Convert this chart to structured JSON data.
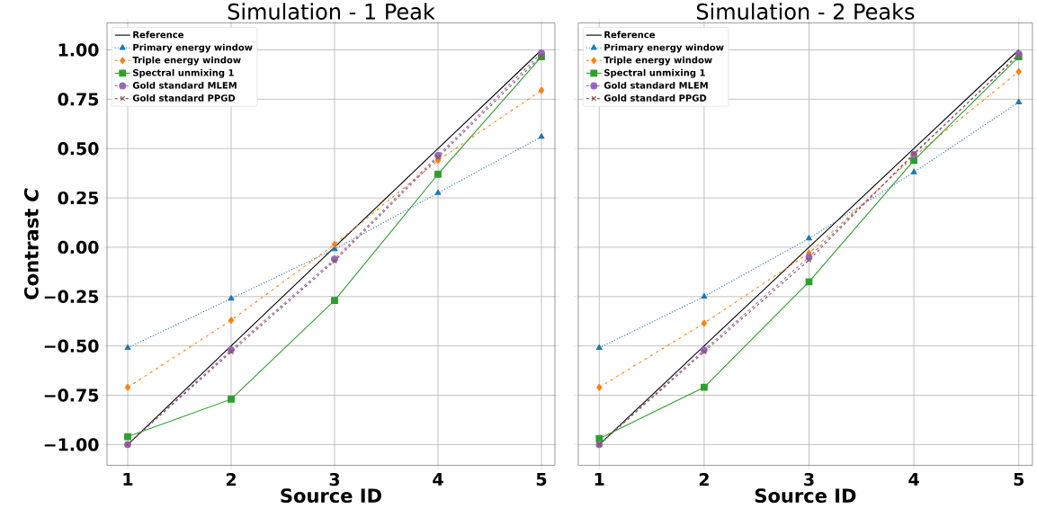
{
  "chart_data": [
    {
      "type": "line",
      "title": "Simulation - 1 Peak",
      "xlabel": "Source ID",
      "ylabel": "Contrast *C*",
      "x": [
        1,
        2,
        3,
        4,
        5
      ],
      "xlim": [
        0.8,
        5.13
      ],
      "ylim": [
        -1.105,
        1.137
      ],
      "xticks": [
        1,
        2,
        3,
        4,
        5
      ],
      "yticks": [
        {
          "value": -1,
          "label": "−1.00"
        },
        {
          "value": -0.75,
          "label": "−0.75"
        },
        {
          "value": -0.5,
          "label": "−0.50"
        },
        {
          "value": -0.25,
          "label": "−0.25"
        },
        {
          "value": 0,
          "label": "0.00"
        },
        {
          "value": 0.25,
          "label": "0.25"
        },
        {
          "value": 0.5,
          "label": "0.50"
        },
        {
          "value": 0.75,
          "label": "0.75"
        },
        {
          "value": 1,
          "label": "1.00"
        }
      ],
      "grid": true,
      "legend": "top left",
      "series": [
        {
          "name": "Reference",
          "color": "#000000",
          "marker": "none",
          "line_style": "solid",
          "values": [
            -1,
            -0.5,
            0,
            0.5,
            1
          ]
        },
        {
          "name": "Primary energy window",
          "color": "#1f77b4",
          "marker": "triangle",
          "line_style": "dotted",
          "values": [
            -0.51,
            -0.26,
            -0.01,
            0.275,
            0.56
          ]
        },
        {
          "name": "Triple energy window",
          "color": "#ff7f0e",
          "marker": "diamond",
          "line_style": "dashdot",
          "values": [
            -0.71,
            -0.37,
            0.015,
            0.44,
            0.795
          ]
        },
        {
          "name": "Spectral unmixing 1",
          "color": "#2ca02c",
          "marker": "square",
          "line_style": "solid",
          "values": [
            -0.96,
            -0.77,
            -0.27,
            0.37,
            0.965
          ]
        },
        {
          "name": "Gold standard MLEM",
          "color": "#9467bd",
          "marker": "circle",
          "line_style": "dashed",
          "values": [
            -1.0,
            -0.52,
            -0.06,
            0.465,
            0.985
          ]
        },
        {
          "name": "Gold standard PPGD",
          "color": "#8c564b",
          "marker": "cross",
          "line_style": "dashed",
          "values": [
            -1.0,
            -0.53,
            -0.07,
            0.455,
            0.97
          ]
        }
      ]
    },
    {
      "type": "line",
      "title": "Simulation - 2 Peaks",
      "xlabel": "Source ID",
      "tick_labels": "x",
      "x": [
        1,
        2,
        3,
        4,
        5
      ],
      "xlim": [
        0.8,
        5.13
      ],
      "ylim": [
        -1.105,
        1.137
      ],
      "xticks": [
        1,
        2,
        3,
        4,
        5
      ],
      "yticks": [
        {
          "value": -1,
          "label": null
        },
        {
          "value": -0.75,
          "label": null
        },
        {
          "value": -0.5,
          "label": null
        },
        {
          "value": -0.25,
          "label": null
        },
        {
          "value": 0,
          "label": null
        },
        {
          "value": 0.25,
          "label": null
        },
        {
          "value": 0.5,
          "label": null
        },
        {
          "value": 0.75,
          "label": null
        },
        {
          "value": 1,
          "label": null
        }
      ],
      "grid": true,
      "legend": "top left",
      "series": [
        {
          "name": "Reference",
          "color": "#000000",
          "marker": "none",
          "line_style": "solid",
          "values": [
            -1,
            -0.5,
            0,
            0.5,
            1
          ]
        },
        {
          "name": "Primary energy window",
          "color": "#1f77b4",
          "marker": "triangle",
          "line_style": "dotted",
          "values": [
            -0.51,
            -0.25,
            0.045,
            0.38,
            0.735
          ]
        },
        {
          "name": "Triple energy window",
          "color": "#ff7f0e",
          "marker": "diamond",
          "line_style": "dashdot",
          "values": [
            -0.71,
            -0.385,
            -0.03,
            0.46,
            0.89
          ]
        },
        {
          "name": "Spectral unmixing 1",
          "color": "#2ca02c",
          "marker": "square",
          "line_style": "solid",
          "values": [
            -0.97,
            -0.71,
            -0.175,
            0.44,
            0.965
          ]
        },
        {
          "name": "Gold standard MLEM",
          "color": "#9467bd",
          "marker": "circle",
          "line_style": "dashed",
          "values": [
            -1.0,
            -0.52,
            -0.05,
            0.47,
            0.98
          ]
        },
        {
          "name": "Gold standard PPGD",
          "color": "#8c564b",
          "marker": "cross",
          "line_style": "dashed",
          "values": [
            -1.0,
            -0.53,
            -0.065,
            0.475,
            0.975
          ]
        }
      ]
    }
  ]
}
